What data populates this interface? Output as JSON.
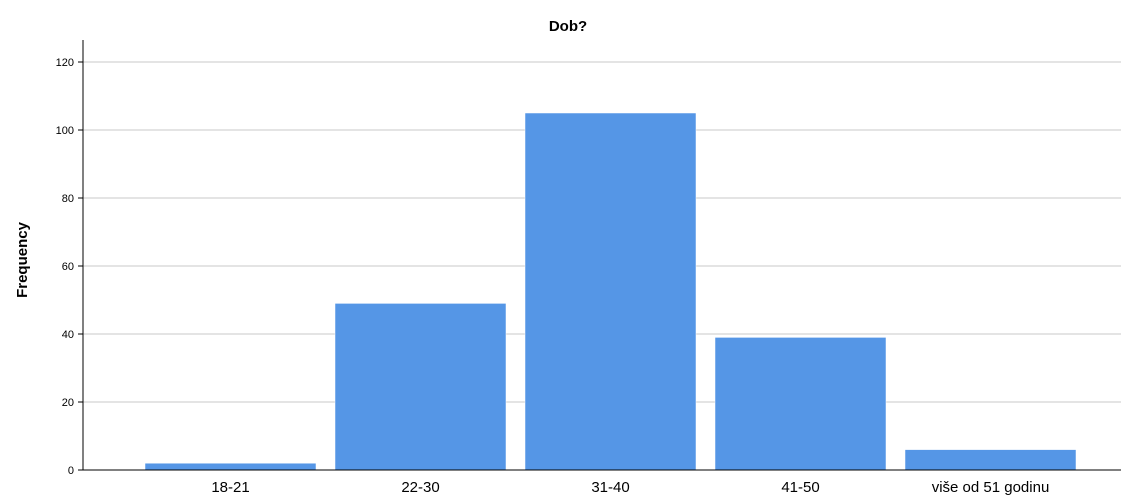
{
  "chart_data": {
    "type": "bar",
    "title": "Dob?",
    "xlabel": "",
    "ylabel": "Frequency",
    "categories": [
      "18-21",
      "22-30",
      "31-40",
      "41-50",
      "više od 51 godinu"
    ],
    "values": [
      2,
      49,
      105,
      39,
      6
    ],
    "ylim": [
      0,
      120
    ],
    "yticks": [
      0,
      20,
      40,
      60,
      80,
      100,
      120
    ],
    "grid": true,
    "bar_color": "#5596e6"
  }
}
